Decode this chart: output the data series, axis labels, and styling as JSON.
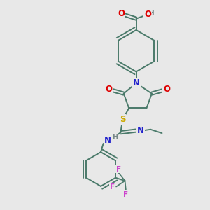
{
  "background_color": "#e8e8e8",
  "atom_colors": {
    "C": "#4a7a6a",
    "N": "#2222cc",
    "O": "#dd0000",
    "S": "#ccaa00",
    "F": "#cc44cc",
    "H": "#778888"
  },
  "bond_color": "#4a7a6a",
  "figsize": [
    3.0,
    3.0
  ],
  "dpi": 100,
  "xlim": [
    0,
    10
  ],
  "ylim": [
    0,
    10
  ]
}
